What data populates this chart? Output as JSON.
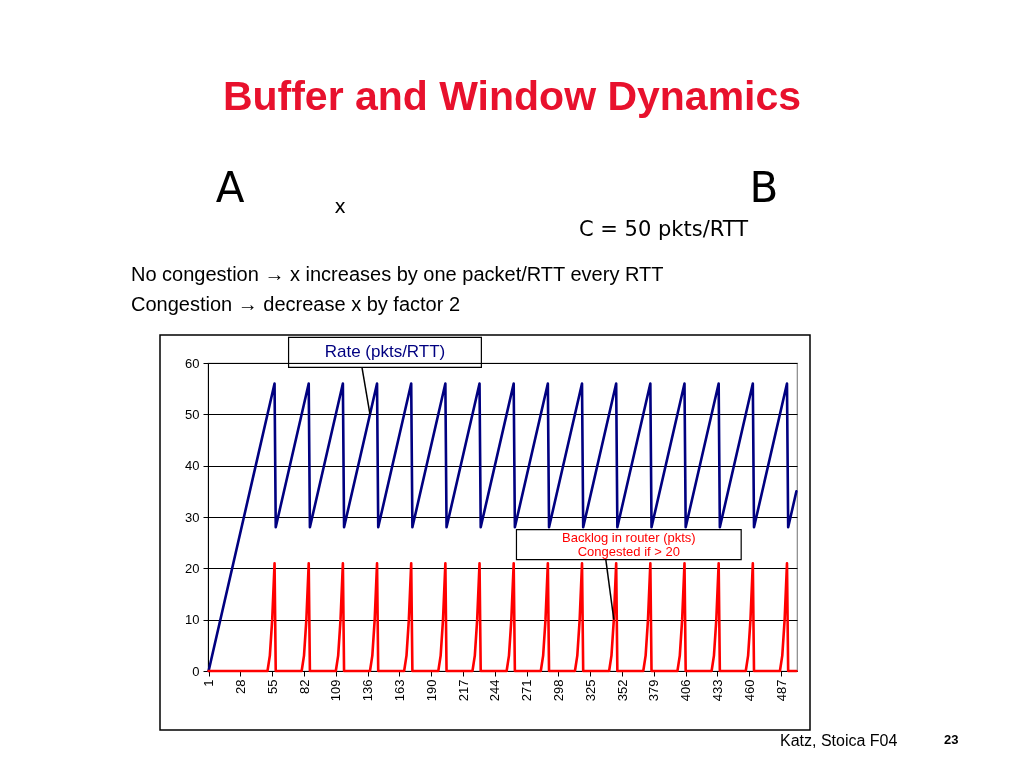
{
  "chart_data": {
    "type": "line",
    "title": "Buffer and Window Dynamics",
    "annotations": [
      "A",
      "x",
      "B",
      "C = 50 pkts/RTT",
      "No congestion → x increases by one packet/RTT every RTT",
      "Congestion → decrease x by factor 2",
      {
        "text": "Rate (pkts/RTT)",
        "x": 138,
        "y": 50
      },
      {
        "text": "Backlog in router (pkts)\nCongested if > 20",
        "x": 345,
        "y": 10
      },
      "Katz, Stoica F04",
      "23"
    ],
    "xlim": [
      0.5,
      500.5
    ],
    "xticks": [
      1,
      28,
      55,
      82,
      109,
      136,
      163,
      190,
      217,
      244,
      271,
      298,
      325,
      352,
      379,
      406,
      433,
      460,
      487
    ],
    "ylim": [
      0,
      60
    ],
    "yticks": [
      0,
      10,
      20,
      30,
      40,
      50,
      60
    ],
    "grid": "y",
    "series": [
      {
        "color": "#000080",
        "x": [
          1,
          57,
          58,
          86,
          87,
          115,
          116,
          144,
          145,
          173,
          174,
          202,
          203,
          231,
          232,
          260,
          261,
          289,
          290,
          318,
          319,
          347,
          348,
          376,
          377,
          405,
          406,
          434,
          435,
          463,
          464,
          492,
          493,
          500
        ],
        "values": [
          0,
          56,
          28,
          56,
          28,
          56,
          28,
          56,
          28,
          56,
          28,
          56,
          28,
          56,
          28,
          56,
          28,
          56,
          28,
          56,
          28,
          56,
          28,
          56,
          28,
          56,
          28,
          56,
          28,
          56,
          28,
          56,
          28,
          35
        ]
      },
      {
        "color": "#ff0000",
        "x": [
          1,
          51,
          53,
          55,
          57,
          58,
          80,
          82,
          84,
          86,
          87,
          109,
          111,
          113,
          115,
          116,
          138,
          140,
          142,
          144,
          145,
          167,
          169,
          171,
          173,
          174,
          196,
          198,
          200,
          202,
          203,
          225,
          227,
          229,
          231,
          232,
          254,
          256,
          258,
          260,
          261,
          283,
          285,
          287,
          289,
          290,
          312,
          314,
          316,
          318,
          319,
          341,
          343,
          345,
          347,
          348,
          370,
          372,
          374,
          376,
          377,
          399,
          401,
          403,
          405,
          406,
          428,
          430,
          432,
          434,
          435,
          457,
          459,
          461,
          463,
          464,
          486,
          488,
          490,
          492,
          493,
          500
        ],
        "values": [
          0,
          0,
          3,
          10,
          21,
          0,
          0,
          3,
          10,
          21,
          0,
          0,
          3,
          10,
          21,
          0,
          0,
          3,
          10,
          21,
          0,
          0,
          3,
          10,
          21,
          0,
          0,
          3,
          10,
          21,
          0,
          0,
          3,
          10,
          21,
          0,
          0,
          3,
          10,
          21,
          0,
          0,
          3,
          10,
          21,
          0,
          0,
          3,
          10,
          21,
          0,
          0,
          3,
          10,
          21,
          0,
          0,
          3,
          10,
          21,
          0,
          0,
          3,
          10,
          21,
          0,
          0,
          3,
          10,
          21,
          0,
          0,
          3,
          10,
          21,
          0,
          0,
          3,
          10,
          21,
          0,
          0
        ]
      }
    ]
  }
}
